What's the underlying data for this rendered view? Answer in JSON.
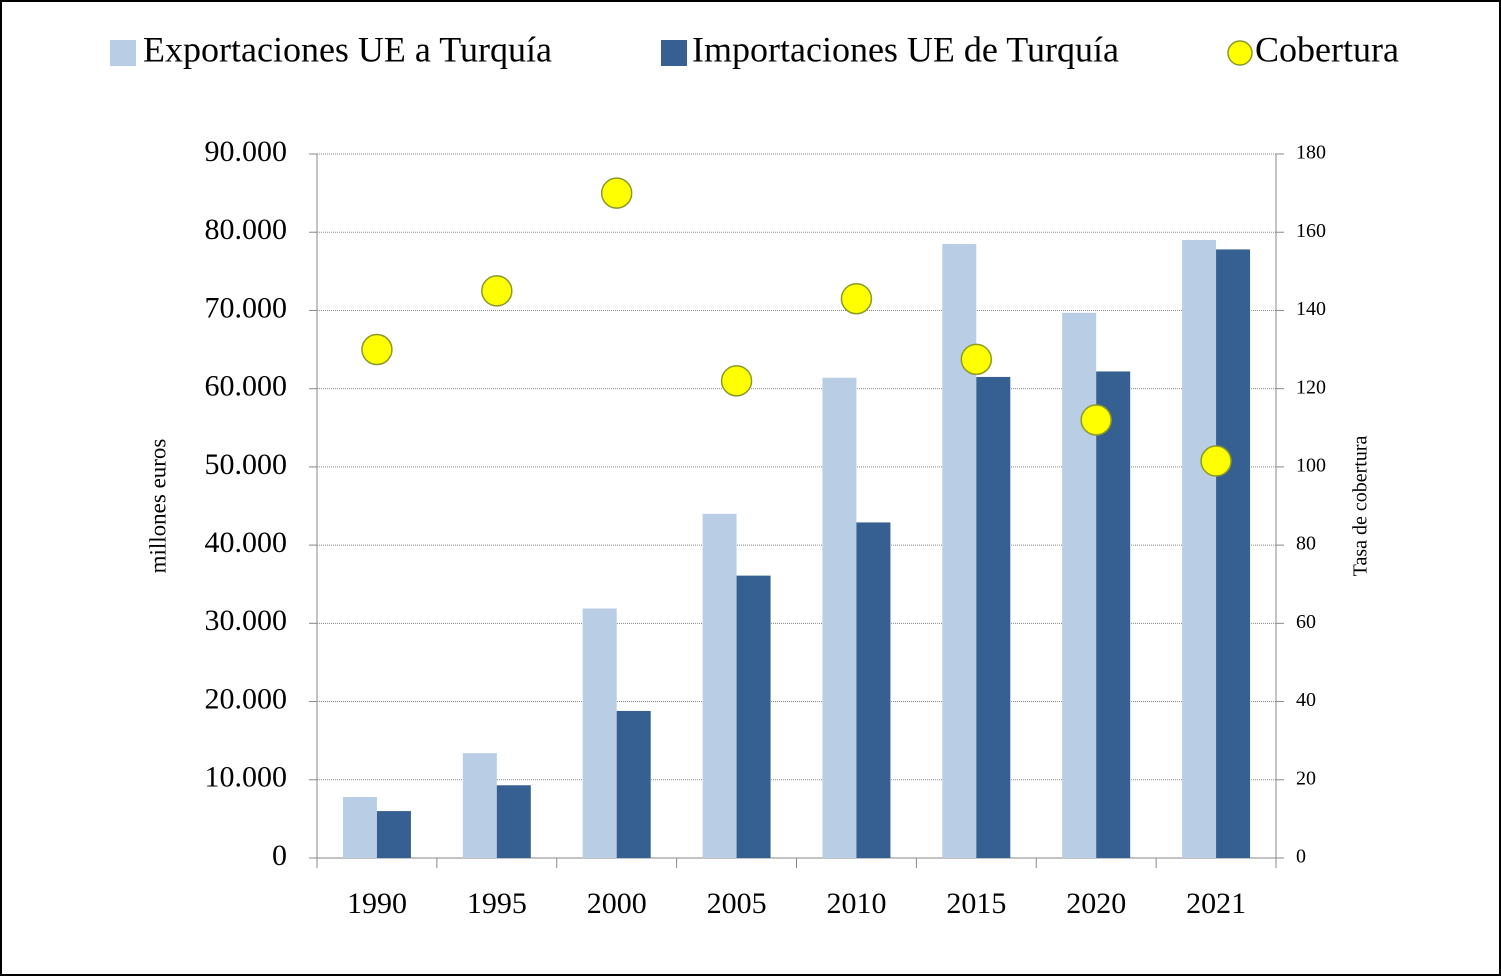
{
  "chart_data": {
    "type": "bar",
    "categories": [
      "1990",
      "1995",
      "2000",
      "2005",
      "2010",
      "2015",
      "2020",
      "2021"
    ],
    "series": [
      {
        "name": "Exportaciones UE a Turquía",
        "color": "#b9cde5",
        "values": [
          7800,
          13400,
          31900,
          44000,
          61400,
          78500,
          69700,
          79000
        ]
      },
      {
        "name": "Importaciones UE de Turquía",
        "color": "#376092",
        "values": [
          6000,
          9300,
          18800,
          36100,
          42900,
          61500,
          62200,
          77800
        ]
      },
      {
        "name": "Cobertura",
        "type": "scatter",
        "axis": "y2",
        "color": "#ffff00",
        "values": [
          130,
          145,
          170,
          122,
          143,
          127.5,
          112,
          101.5
        ]
      }
    ],
    "ylabel": "millones euros",
    "y2label": "Tasa de cobertura",
    "ylim": [
      0,
      90000
    ],
    "yticks": [
      0,
      {
        "value": 10000,
        "label": "10.000"
      },
      {
        "value": 20000,
        "label": "20.000"
      },
      {
        "value": 30000,
        "label": "30.000"
      },
      {
        "value": 40000,
        "label": "40.000"
      },
      {
        "value": 50000,
        "label": "50.000"
      },
      {
        "value": 60000,
        "label": "60.000"
      },
      {
        "value": 70000,
        "label": "70.000"
      },
      {
        "value": 80000,
        "label": "80.000"
      },
      {
        "value": 90000,
        "label": "90.000"
      }
    ],
    "y2lim": [
      0,
      180
    ],
    "y2ticks": [
      0,
      20,
      40,
      60,
      80,
      100,
      120,
      140,
      160,
      180
    ],
    "grid": true,
    "legend": "top"
  }
}
